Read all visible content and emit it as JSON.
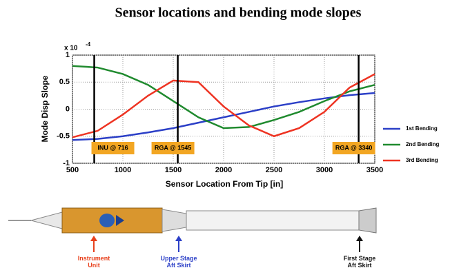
{
  "chart_data": {
    "type": "line",
    "title": "Sensor locations and bending mode slopes",
    "xlabel": "Sensor Location From Tip [in]",
    "ylabel": "Mode Disp Slope",
    "y_scale_label": {
      "base": "x 10",
      "exponent": "-4"
    },
    "x": [
      500,
      750,
      1000,
      1250,
      1500,
      1750,
      2000,
      2250,
      2500,
      2750,
      3000,
      3250,
      3500
    ],
    "series": [
      {
        "name": "1st Bending",
        "color": "#2b3fc7",
        "values": [
          -0.57,
          -0.55,
          -0.5,
          -0.43,
          -0.35,
          -0.25,
          -0.15,
          -0.05,
          0.05,
          0.13,
          0.2,
          0.26,
          0.3
        ]
      },
      {
        "name": "2nd Bending",
        "color": "#1f8a2e",
        "values": [
          0.8,
          0.77,
          0.65,
          0.45,
          0.15,
          -0.15,
          -0.35,
          -0.33,
          -0.2,
          -0.05,
          0.15,
          0.33,
          0.45
        ]
      },
      {
        "name": "3rd Bending",
        "color": "#ee3322",
        "values": [
          -0.52,
          -0.4,
          -0.1,
          0.25,
          0.53,
          0.5,
          0.05,
          -0.3,
          -0.5,
          -0.35,
          -0.05,
          0.4,
          0.65
        ]
      }
    ],
    "markers": [
      {
        "x": 716,
        "label": "INU @ 716"
      },
      {
        "x": 1545,
        "label": "RGA @ 1545"
      },
      {
        "x": 3340,
        "label": "RGA @ 3340"
      }
    ],
    "xlim": [
      500,
      3500
    ],
    "xticks": [
      500,
      1000,
      1500,
      2000,
      2500,
      3000,
      3500
    ],
    "ylim": [
      -1,
      1
    ],
    "yticks": [
      -1,
      -0.5,
      0,
      0.5,
      1
    ],
    "grid": true,
    "legend": "right",
    "illustration_labels": [
      {
        "text": "Instrument Unit",
        "color": "#e8401c"
      },
      {
        "text": "Upper Stage Aft Skirt",
        "color": "#2b3fc7"
      },
      {
        "text": "First Stage Aft Skirt",
        "color": "#111111"
      }
    ]
  }
}
